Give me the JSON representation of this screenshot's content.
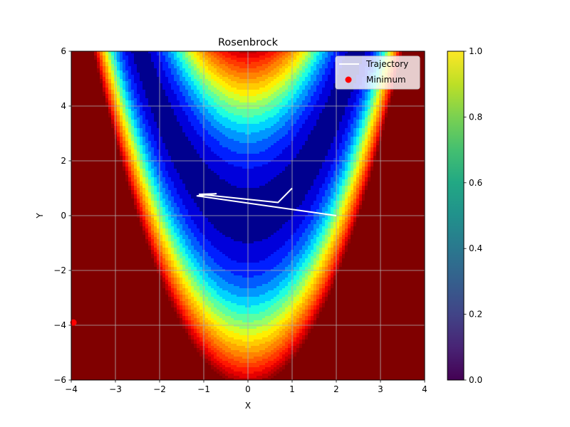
{
  "chart_data": {
    "type": "contour",
    "title": "Rosenbrock",
    "xlabel": "X",
    "ylabel": "Y",
    "xlim": [
      -4,
      4
    ],
    "ylim": [
      -6,
      6
    ],
    "x_ticks": [
      -4,
      -3,
      -2,
      -1,
      0,
      1,
      2,
      3,
      4
    ],
    "y_ticks": [
      -6,
      -4,
      -2,
      0,
      2,
      4,
      6
    ],
    "grid": true,
    "colormap": "jet",
    "contour_levels": [
      100,
      300,
      500,
      700,
      900,
      1100,
      1300,
      1500,
      1700,
      1900,
      2100,
      2300,
      2500,
      2700,
      2900,
      3100,
      3300,
      3500,
      3700,
      3900
    ],
    "contour_colors": [
      "#00008f",
      "#0000db",
      "#001fff",
      "#005bff",
      "#0097ff",
      "#00d3ff",
      "#1fffdf",
      "#5bffa3",
      "#97ff67",
      "#d3ff2b",
      "#ffef00",
      "#ffcb00",
      "#ffa700",
      "#ff8300",
      "#ff5f00",
      "#ff3b00",
      "#ff1700",
      "#e60000",
      "#c00000",
      "#9a0000",
      "#800000"
    ],
    "series": [
      {
        "name": "Trajectory",
        "kind": "line",
        "color": "#ffffff",
        "x": [
          1.0,
          0.68,
          -1.1,
          -0.72,
          -1.15,
          2.0
        ],
        "y": [
          1.0,
          0.48,
          0.78,
          0.8,
          0.72,
          0.0
        ]
      },
      {
        "name": "Minimum",
        "kind": "scatter",
        "color": "#ff0000",
        "x": [
          -3.95
        ],
        "y": [
          -3.9
        ]
      }
    ],
    "legend": {
      "location": "upper right",
      "entries": [
        "Trajectory",
        "Minimum"
      ]
    },
    "colorbar": {
      "colormap": "viridis",
      "range": [
        0.0,
        1.0
      ],
      "ticks": [
        "0.0",
        "0.2",
        "0.4",
        "0.6",
        "0.8",
        "1.0"
      ]
    }
  }
}
